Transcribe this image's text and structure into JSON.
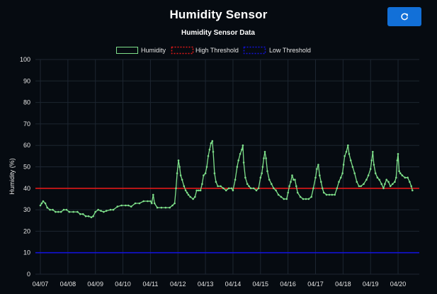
{
  "app": {
    "title": "Humidity Sensor"
  },
  "toolbar": {
    "refresh_icon": "refresh-icon",
    "refresh_color": "#1270d8"
  },
  "chart_data": {
    "type": "line",
    "title": "Humidity Sensor Data",
    "ylabel": "Humidity (%)",
    "xlabel": "",
    "ylim": [
      0,
      100
    ],
    "yticks": [
      0,
      10,
      20,
      30,
      40,
      50,
      60,
      70,
      80,
      90,
      100
    ],
    "xticks": [
      "04/07",
      "04/08",
      "04/09",
      "04/10",
      "04/11",
      "04/12",
      "04/13",
      "04/14",
      "04/15",
      "04/16",
      "04/17",
      "04/18",
      "04/19",
      "04/20"
    ],
    "grid": true,
    "legend_position": "top-center",
    "series": [
      {
        "name": "Humidity",
        "color": "#7ee08a",
        "points": [
          [
            0.0,
            32
          ],
          [
            0.05,
            33
          ],
          [
            0.1,
            34
          ],
          [
            0.18,
            33
          ],
          [
            0.25,
            31
          ],
          [
            0.35,
            30
          ],
          [
            0.45,
            30
          ],
          [
            0.55,
            29
          ],
          [
            0.65,
            29
          ],
          [
            0.75,
            29
          ],
          [
            0.85,
            30
          ],
          [
            0.95,
            30
          ],
          [
            1.05,
            29
          ],
          [
            1.2,
            29
          ],
          [
            1.35,
            29
          ],
          [
            1.45,
            28
          ],
          [
            1.55,
            28
          ],
          [
            1.65,
            27
          ],
          [
            1.75,
            27
          ],
          [
            1.85,
            26.5
          ],
          [
            1.92,
            27
          ],
          [
            2.0,
            29
          ],
          [
            2.1,
            30
          ],
          [
            2.2,
            29.5
          ],
          [
            2.3,
            29
          ],
          [
            2.4,
            29.5
          ],
          [
            2.55,
            30
          ],
          [
            2.65,
            30
          ],
          [
            2.8,
            31.5
          ],
          [
            2.95,
            32
          ],
          [
            3.1,
            32
          ],
          [
            3.2,
            32
          ],
          [
            3.3,
            31.5
          ],
          [
            3.45,
            33
          ],
          [
            3.6,
            33
          ],
          [
            3.75,
            34
          ],
          [
            3.9,
            34
          ],
          [
            4.0,
            34
          ],
          [
            4.05,
            33
          ],
          [
            4.1,
            37
          ],
          [
            4.15,
            33
          ],
          [
            4.25,
            31
          ],
          [
            4.4,
            31
          ],
          [
            4.55,
            31
          ],
          [
            4.7,
            31
          ],
          [
            4.8,
            32
          ],
          [
            4.88,
            33
          ],
          [
            4.93,
            40
          ],
          [
            4.97,
            47
          ],
          [
            5.02,
            53
          ],
          [
            5.06,
            50
          ],
          [
            5.1,
            46
          ],
          [
            5.15,
            44
          ],
          [
            5.22,
            41
          ],
          [
            5.28,
            39
          ],
          [
            5.33,
            38
          ],
          [
            5.38,
            37
          ],
          [
            5.45,
            36
          ],
          [
            5.55,
            35
          ],
          [
            5.62,
            36
          ],
          [
            5.68,
            39
          ],
          [
            5.75,
            39
          ],
          [
            5.82,
            39
          ],
          [
            5.88,
            42
          ],
          [
            5.93,
            46
          ],
          [
            6.0,
            47
          ],
          [
            6.05,
            50
          ],
          [
            6.1,
            55
          ],
          [
            6.15,
            58
          ],
          [
            6.2,
            61
          ],
          [
            6.25,
            62
          ],
          [
            6.28,
            57
          ],
          [
            6.33,
            47
          ],
          [
            6.38,
            43
          ],
          [
            6.45,
            41
          ],
          [
            6.55,
            41
          ],
          [
            6.65,
            40
          ],
          [
            6.75,
            39
          ],
          [
            6.85,
            40
          ],
          [
            6.95,
            40
          ],
          [
            7.0,
            39
          ],
          [
            7.08,
            44
          ],
          [
            7.15,
            50
          ],
          [
            7.2,
            53
          ],
          [
            7.26,
            56
          ],
          [
            7.32,
            58
          ],
          [
            7.36,
            60
          ],
          [
            7.39,
            52
          ],
          [
            7.45,
            45
          ],
          [
            7.52,
            42
          ],
          [
            7.58,
            41
          ],
          [
            7.65,
            40
          ],
          [
            7.75,
            40
          ],
          [
            7.85,
            39
          ],
          [
            7.93,
            40
          ],
          [
            8.0,
            45
          ],
          [
            8.05,
            47
          ],
          [
            8.08,
            50
          ],
          [
            8.12,
            54
          ],
          [
            8.16,
            57
          ],
          [
            8.2,
            54
          ],
          [
            8.25,
            48
          ],
          [
            8.32,
            44
          ],
          [
            8.4,
            42
          ],
          [
            8.48,
            40
          ],
          [
            8.56,
            39
          ],
          [
            8.65,
            37
          ],
          [
            8.75,
            36
          ],
          [
            8.85,
            35
          ],
          [
            8.95,
            35
          ],
          [
            9.0,
            38
          ],
          [
            9.05,
            41
          ],
          [
            9.1,
            43
          ],
          [
            9.15,
            46
          ],
          [
            9.2,
            44
          ],
          [
            9.25,
            44
          ],
          [
            9.3,
            41
          ],
          [
            9.35,
            38
          ],
          [
            9.45,
            36
          ],
          [
            9.55,
            35
          ],
          [
            9.65,
            35
          ],
          [
            9.75,
            35
          ],
          [
            9.85,
            36
          ],
          [
            9.92,
            40
          ],
          [
            10.0,
            45
          ],
          [
            10.05,
            49
          ],
          [
            10.1,
            51
          ],
          [
            10.15,
            46
          ],
          [
            10.2,
            43
          ],
          [
            10.25,
            40
          ],
          [
            10.3,
            38
          ],
          [
            10.4,
            37
          ],
          [
            10.5,
            37
          ],
          [
            10.6,
            37
          ],
          [
            10.7,
            37
          ],
          [
            10.78,
            40
          ],
          [
            10.85,
            43
          ],
          [
            10.92,
            45
          ],
          [
            10.98,
            47
          ],
          [
            11.02,
            51
          ],
          [
            11.06,
            55
          ],
          [
            11.12,
            57
          ],
          [
            11.18,
            60
          ],
          [
            11.22,
            56
          ],
          [
            11.28,
            53
          ],
          [
            11.35,
            50
          ],
          [
            11.42,
            47
          ],
          [
            11.5,
            43
          ],
          [
            11.58,
            41
          ],
          [
            11.65,
            41
          ],
          [
            11.75,
            42
          ],
          [
            11.85,
            44
          ],
          [
            11.92,
            46
          ],
          [
            12.0,
            49
          ],
          [
            12.04,
            53
          ],
          [
            12.08,
            57
          ],
          [
            12.12,
            51
          ],
          [
            12.18,
            47
          ],
          [
            12.25,
            45
          ],
          [
            12.32,
            44
          ],
          [
            12.4,
            42
          ],
          [
            12.47,
            40
          ],
          [
            12.52,
            42
          ],
          [
            12.58,
            44
          ],
          [
            12.65,
            43
          ],
          [
            12.72,
            41
          ],
          [
            12.8,
            42
          ],
          [
            12.88,
            43
          ],
          [
            12.93,
            45
          ],
          [
            12.97,
            53
          ],
          [
            13.0,
            56
          ],
          [
            13.04,
            48
          ],
          [
            13.08,
            47
          ],
          [
            13.15,
            46
          ],
          [
            13.25,
            45
          ],
          [
            13.35,
            45
          ],
          [
            13.42,
            43
          ],
          [
            13.48,
            41
          ],
          [
            13.52,
            39
          ]
        ]
      },
      {
        "name": "High Threshold",
        "color": "#e01818",
        "value": 40
      },
      {
        "name": "Low Threshold",
        "color": "#1212d8",
        "value": 10
      }
    ]
  }
}
